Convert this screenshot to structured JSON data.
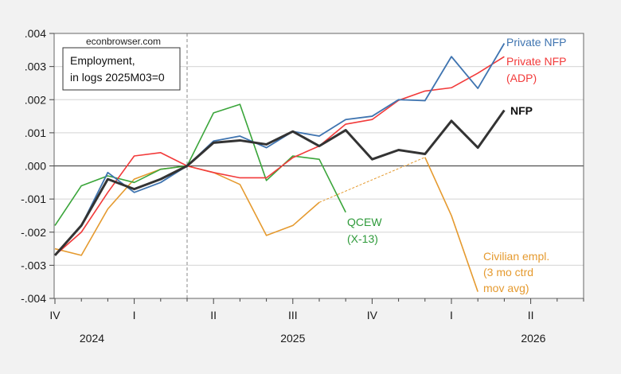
{
  "chart_data": {
    "type": "line",
    "source_label": "econbrowser.com",
    "title_lines": [
      "Employment,",
      "in logs 2025M03=0"
    ],
    "xlabel": "",
    "ylabel": "",
    "ylim": [
      -0.004,
      0.004
    ],
    "yticks": [
      0.004,
      0.003,
      0.002,
      0.001,
      0.0,
      -0.001,
      -0.002,
      -0.003,
      -0.004
    ],
    "ytick_labels": [
      ".004",
      ".003",
      ".002",
      ".001",
      ".000",
      "-.001",
      "-.002",
      "-.003",
      "-.004"
    ],
    "x": [
      "2024M10",
      "2024M11",
      "2024M12",
      "2025M01",
      "2025M02",
      "2025M03",
      "2025M04",
      "2025M05",
      "2025M06",
      "2025M07",
      "2025M08",
      "2025M09",
      "2025M10",
      "2025M11",
      "2025M12",
      "2026M01",
      "2026M02",
      "2026M03"
    ],
    "x_axis_months": 21,
    "reference_index": 5,
    "quarter_ticks": [
      {
        "index": 0,
        "label": "IV"
      },
      {
        "index": 3,
        "label": "I"
      },
      {
        "index": 6,
        "label": "II"
      },
      {
        "index": 9,
        "label": "III"
      },
      {
        "index": 12,
        "label": "IV"
      },
      {
        "index": 15,
        "label": "I"
      },
      {
        "index": 18,
        "label": "II"
      }
    ],
    "year_labels": [
      {
        "label": "2024",
        "center_index": 1.4
      },
      {
        "label": "2025",
        "center_index": 9
      },
      {
        "label": "2026",
        "center_index": 18.1
      }
    ],
    "grid": true,
    "series": [
      {
        "name": "Civilian empl. (3 mo ctrd mov avg)",
        "label_lines": [
          "Civilian empl.",
          "(3 mo ctrd",
          "mov avg)"
        ],
        "color": "#e59a2f",
        "width": 1.6,
        "values": [
          -0.0025,
          -0.0027,
          -0.0013,
          -0.0004,
          -0.0001,
          0.0,
          -0.0002,
          -0.00056,
          -0.0021,
          -0.0018,
          -0.0011,
          null,
          null,
          null,
          0.00026,
          -0.0015,
          -0.0038,
          null
        ],
        "dashed_gap": true
      },
      {
        "name": "QCEW (X-13)",
        "label_lines": [
          "QCEW",
          "(X-13)"
        ],
        "color": "#3aa53a",
        "width": 1.6,
        "values": [
          -0.0018,
          -0.0006,
          -0.0003,
          -0.0005,
          -0.0001,
          0.0,
          0.0016,
          0.00186,
          -0.00044,
          0.0003,
          0.0002,
          -0.0014,
          null,
          null,
          null,
          null,
          null,
          null
        ]
      },
      {
        "name": "Private NFP (ADP)",
        "label_lines": [
          "Private NFP",
          "(ADP)"
        ],
        "color": "#f23a3a",
        "width": 1.6,
        "values": [
          -0.0027,
          -0.002,
          -0.0008,
          0.0003,
          0.0004,
          0.0,
          -0.0002,
          -0.00036,
          -0.00036,
          0.00025,
          0.0006,
          0.00126,
          0.0014,
          0.00198,
          0.00226,
          0.00236,
          0.0028,
          0.0033
        ]
      },
      {
        "name": "Private NFP",
        "label_lines": [
          "Private NFP"
        ],
        "color": "#3f74b0",
        "width": 1.8,
        "values": [
          -0.0027,
          -0.0018,
          -0.0002,
          -0.0008,
          -0.0005,
          0.0,
          0.00075,
          0.0009,
          0.00055,
          0.00104,
          0.0009,
          0.0014,
          0.0015,
          0.002,
          0.00197,
          0.0033,
          0.00234,
          0.0037
        ]
      },
      {
        "name": "NFP",
        "label_lines": [
          "NFP"
        ],
        "color": "#333333",
        "width": 3,
        "bold_label": true,
        "values": [
          -0.0027,
          -0.0018,
          -0.0004,
          -0.0007,
          -0.0004,
          0.0,
          0.0007,
          0.00077,
          0.00065,
          0.00104,
          0.0006,
          0.00108,
          0.0002,
          0.00048,
          0.00036,
          0.00136,
          0.00055,
          0.00168
        ]
      }
    ]
  }
}
